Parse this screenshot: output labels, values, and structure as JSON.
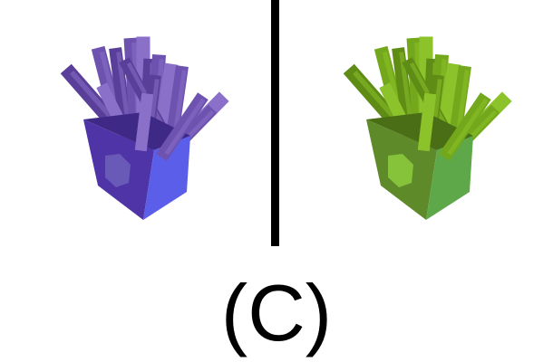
{
  "caption": "(C)",
  "panels": [
    {
      "name": "left",
      "object": "fries-icon",
      "colors": {
        "fries_dark": "#5a3f9a",
        "fries_mid": "#6e52b0",
        "fries_light": "#8a70c8",
        "box_side": "#4f34a8",
        "box_front": "#5a5ee8",
        "box_inner": "#3e2a86",
        "emblem": "#6a5ab8"
      }
    },
    {
      "name": "right",
      "object": "fries-icon",
      "colors": {
        "fries_dark": "#5e8c14",
        "fries_mid": "#74a81c",
        "fries_light": "#8cc22a",
        "box_side": "#5f8a2a",
        "box_front": "#5fa84a",
        "box_inner": "#4a6e16",
        "emblem": "#86c23a"
      }
    }
  ],
  "divider_color": "#000000"
}
